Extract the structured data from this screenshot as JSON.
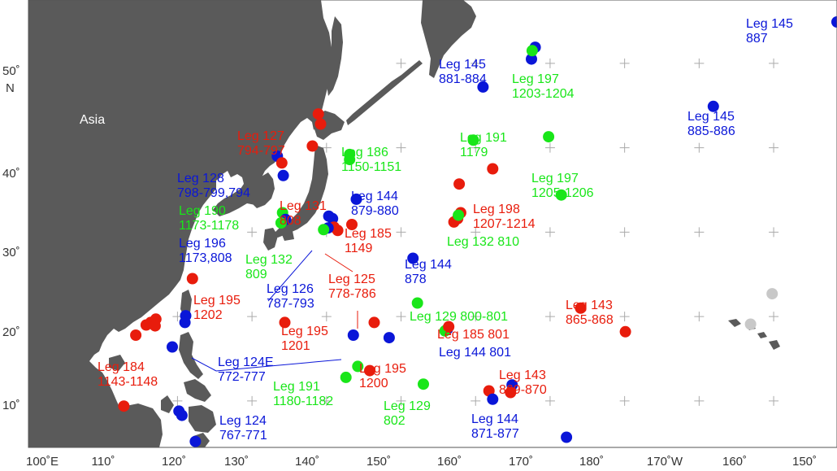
{
  "colors": {
    "blue": "#0a16d8",
    "red": "#e81c0c",
    "green": "#19e619",
    "gray": "#c8c8c8",
    "land": "#5a5a5a",
    "water": "#ffffff",
    "grid": "#aaaaaa"
  },
  "region_label": "Asia",
  "axes": {
    "lon_min": 100,
    "lon_max": 208.5,
    "lat_min": 4.5,
    "lat_max": 57.5,
    "x_ticks": [
      "100˚E",
      "110˚",
      "120˚",
      "130˚",
      "140˚",
      "150˚",
      "160˚",
      "170˚",
      "180˚",
      "170˚W",
      "160˚",
      "150˚"
    ],
    "y_ticks": [
      "10˚",
      "20˚",
      "30˚",
      "40˚",
      "50˚"
    ],
    "y_unit": "N",
    "grid_lons": [
      190,
      200
    ],
    "grid_lats": [
      10,
      20,
      30,
      40,
      50
    ]
  },
  "sites": [
    {
      "lon": 208.5,
      "lat": 54.9,
      "color": "blue"
    },
    {
      "lon": 168.0,
      "lat": 51.9,
      "color": "blue"
    },
    {
      "lon": 167.5,
      "lat": 50.5,
      "color": "blue"
    },
    {
      "lon": 167.6,
      "lat": 51.5,
      "color": "green"
    },
    {
      "lon": 161.0,
      "lat": 47.2,
      "color": "blue"
    },
    {
      "lon": 191.9,
      "lat": 44.9,
      "color": "blue"
    },
    {
      "lon": 138.9,
      "lat": 44.0,
      "color": "red"
    },
    {
      "lon": 139.2,
      "lat": 42.8,
      "color": "red"
    },
    {
      "lon": 138.1,
      "lat": 40.2,
      "color": "red"
    },
    {
      "lon": 143.1,
      "lat": 39.2,
      "color": "green"
    },
    {
      "lon": 143.1,
      "lat": 38.6,
      "color": "green"
    },
    {
      "lon": 133.4,
      "lat": 39.0,
      "color": "blue"
    },
    {
      "lon": 134.0,
      "lat": 38.2,
      "color": "red"
    },
    {
      "lon": 134.2,
      "lat": 36.7,
      "color": "blue"
    },
    {
      "lon": 159.7,
      "lat": 40.9,
      "color": "green"
    },
    {
      "lon": 169.8,
      "lat": 41.3,
      "color": "green"
    },
    {
      "lon": 162.3,
      "lat": 37.5,
      "color": "red"
    },
    {
      "lon": 157.8,
      "lat": 35.7,
      "color": "red"
    },
    {
      "lon": 171.5,
      "lat": 34.4,
      "color": "green"
    },
    {
      "lon": 144.0,
      "lat": 33.9,
      "color": "blue"
    },
    {
      "lon": 158.0,
      "lat": 32.3,
      "color": "red"
    },
    {
      "lon": 157.6,
      "lat": 31.6,
      "color": "red"
    },
    {
      "lon": 157.1,
      "lat": 31.2,
      "color": "red"
    },
    {
      "lon": 157.7,
      "lat": 32.0,
      "color": "green"
    },
    {
      "lon": 140.3,
      "lat": 31.9,
      "color": "blue"
    },
    {
      "lon": 140.8,
      "lat": 31.6,
      "color": "blue"
    },
    {
      "lon": 134.1,
      "lat": 32.3,
      "color": "green"
    },
    {
      "lon": 134.5,
      "lat": 31.5,
      "color": "blue"
    },
    {
      "lon": 133.9,
      "lat": 31.1,
      "color": "green"
    },
    {
      "lon": 141.0,
      "lat": 30.6,
      "color": "red"
    },
    {
      "lon": 141.5,
      "lat": 30.2,
      "color": "red"
    },
    {
      "lon": 140.2,
      "lat": 30.5,
      "color": "blue"
    },
    {
      "lon": 139.6,
      "lat": 30.3,
      "color": "green"
    },
    {
      "lon": 143.4,
      "lat": 30.9,
      "color": "red"
    },
    {
      "lon": 151.6,
      "lat": 26.9,
      "color": "blue"
    },
    {
      "lon": 122.0,
      "lat": 24.5,
      "color": "red"
    },
    {
      "lon": 152.2,
      "lat": 21.6,
      "color": "green"
    },
    {
      "lon": 174.1,
      "lat": 21.0,
      "color": "red"
    },
    {
      "lon": 180.1,
      "lat": 18.2,
      "color": "red"
    },
    {
      "lon": 134.4,
      "lat": 19.3,
      "color": "red"
    },
    {
      "lon": 146.4,
      "lat": 19.3,
      "color": "red"
    },
    {
      "lon": 143.6,
      "lat": 17.8,
      "color": "blue"
    },
    {
      "lon": 148.4,
      "lat": 17.5,
      "color": "blue"
    },
    {
      "lon": 156.2,
      "lat": 18.5,
      "color": "blue"
    },
    {
      "lon": 155.9,
      "lat": 18.3,
      "color": "green"
    },
    {
      "lon": 156.4,
      "lat": 18.8,
      "color": "red"
    },
    {
      "lon": 117.1,
      "lat": 19.7,
      "color": "red"
    },
    {
      "lon": 116.4,
      "lat": 19.3,
      "color": "red"
    },
    {
      "lon": 115.8,
      "lat": 19.0,
      "color": "red"
    },
    {
      "lon": 117.0,
      "lat": 18.9,
      "color": "red"
    },
    {
      "lon": 114.4,
      "lat": 17.8,
      "color": "red"
    },
    {
      "lon": 121.1,
      "lat": 20.1,
      "color": "blue"
    },
    {
      "lon": 121.0,
      "lat": 19.3,
      "color": "blue"
    },
    {
      "lon": 119.3,
      "lat": 16.4,
      "color": "blue"
    },
    {
      "lon": 144.2,
      "lat": 14.1,
      "color": "green"
    },
    {
      "lon": 145.8,
      "lat": 13.6,
      "color": "red"
    },
    {
      "lon": 142.6,
      "lat": 12.8,
      "color": "green"
    },
    {
      "lon": 153.0,
      "lat": 12.0,
      "color": "green"
    },
    {
      "lon": 161.8,
      "lat": 11.2,
      "color": "red"
    },
    {
      "lon": 164.9,
      "lat": 11.9,
      "color": "blue"
    },
    {
      "lon": 164.7,
      "lat": 11.0,
      "color": "red"
    },
    {
      "lon": 162.3,
      "lat": 10.2,
      "color": "blue"
    },
    {
      "lon": 112.8,
      "lat": 9.4,
      "color": "red"
    },
    {
      "lon": 120.2,
      "lat": 8.8,
      "color": "blue"
    },
    {
      "lon": 120.6,
      "lat": 8.3,
      "color": "blue"
    },
    {
      "lon": 172.2,
      "lat": 5.7,
      "color": "blue"
    },
    {
      "lon": 122.4,
      "lat": 5.2,
      "color": "blue"
    },
    {
      "lon": 199.8,
      "lat": 22.7,
      "color": "gray"
    },
    {
      "lon": 196.9,
      "lat": 19.1,
      "color": "gray"
    }
  ],
  "legs": [
    {
      "leg": "Leg 145",
      "sites": "887",
      "color": "blue"
    },
    {
      "leg": "Leg 145",
      "sites": "881-884",
      "color": "blue"
    },
    {
      "leg": "Leg 197",
      "sites": "1203-1204",
      "color": "green"
    },
    {
      "leg": "Leg 145",
      "sites": "885-886",
      "color": "blue"
    },
    {
      "leg": "Leg 127",
      "sites": "794-797",
      "color": "red"
    },
    {
      "leg": "Leg 191",
      "sites": "1179",
      "color": "green"
    },
    {
      "leg": "Leg 186",
      "sites": "1150-1151",
      "color": "green"
    },
    {
      "leg": "Leg 128",
      "sites": "798-799,794",
      "color": "blue"
    },
    {
      "leg": "Leg 197",
      "sites": "1205-1206",
      "color": "green"
    },
    {
      "leg": "Leg 144",
      "sites": "879-880",
      "color": "blue"
    },
    {
      "leg": "Leg 131",
      "sites": "808",
      "color": "red"
    },
    {
      "leg": "Leg 198",
      "sites": "1207-1214",
      "color": "red"
    },
    {
      "leg": "Leg 190",
      "sites": "1173-1178",
      "color": "green"
    },
    {
      "leg": "Leg 185",
      "sites": "1149",
      "color": "red"
    },
    {
      "leg": "Leg 132 810",
      "sites": "",
      "color": "green"
    },
    {
      "leg": "Leg 196",
      "sites": "1173,808",
      "color": "blue"
    },
    {
      "leg": "Leg 132",
      "sites": "809",
      "color": "green"
    },
    {
      "leg": "Leg 144",
      "sites": "878",
      "color": "blue"
    },
    {
      "leg": "Leg 125",
      "sites": "778-786",
      "color": "red"
    },
    {
      "leg": "Leg 126",
      "sites": "787-793",
      "color": "blue"
    },
    {
      "leg": "Leg 195",
      "sites": "1202",
      "color": "red"
    },
    {
      "leg": "Leg 129 800-801",
      "sites": "",
      "color": "green"
    },
    {
      "leg": "Leg 143",
      "sites": "865-868",
      "color": "red"
    },
    {
      "leg": "Leg 195",
      "sites": "1201",
      "color": "red"
    },
    {
      "leg": "Leg 185 801",
      "sites": "",
      "color": "red"
    },
    {
      "leg": "Leg 144 801",
      "sites": "",
      "color": "blue"
    },
    {
      "leg": "Leg 124E",
      "sites": "772-777",
      "color": "blue"
    },
    {
      "leg": "Leg 184",
      "sites": "1143-1148",
      "color": "red"
    },
    {
      "leg": "Leg 195",
      "sites": "1200",
      "color": "red"
    },
    {
      "leg": "Leg 191",
      "sites": "1180-1182",
      "color": "green"
    },
    {
      "leg": "Leg 143",
      "sites": "869-870",
      "color": "red"
    },
    {
      "leg": "Leg 129",
      "sites": "802",
      "color": "green"
    },
    {
      "leg": "Leg 124",
      "sites": "767-771",
      "color": "blue"
    },
    {
      "leg": "Leg 144",
      "sites": "871-877",
      "color": "blue"
    }
  ]
}
